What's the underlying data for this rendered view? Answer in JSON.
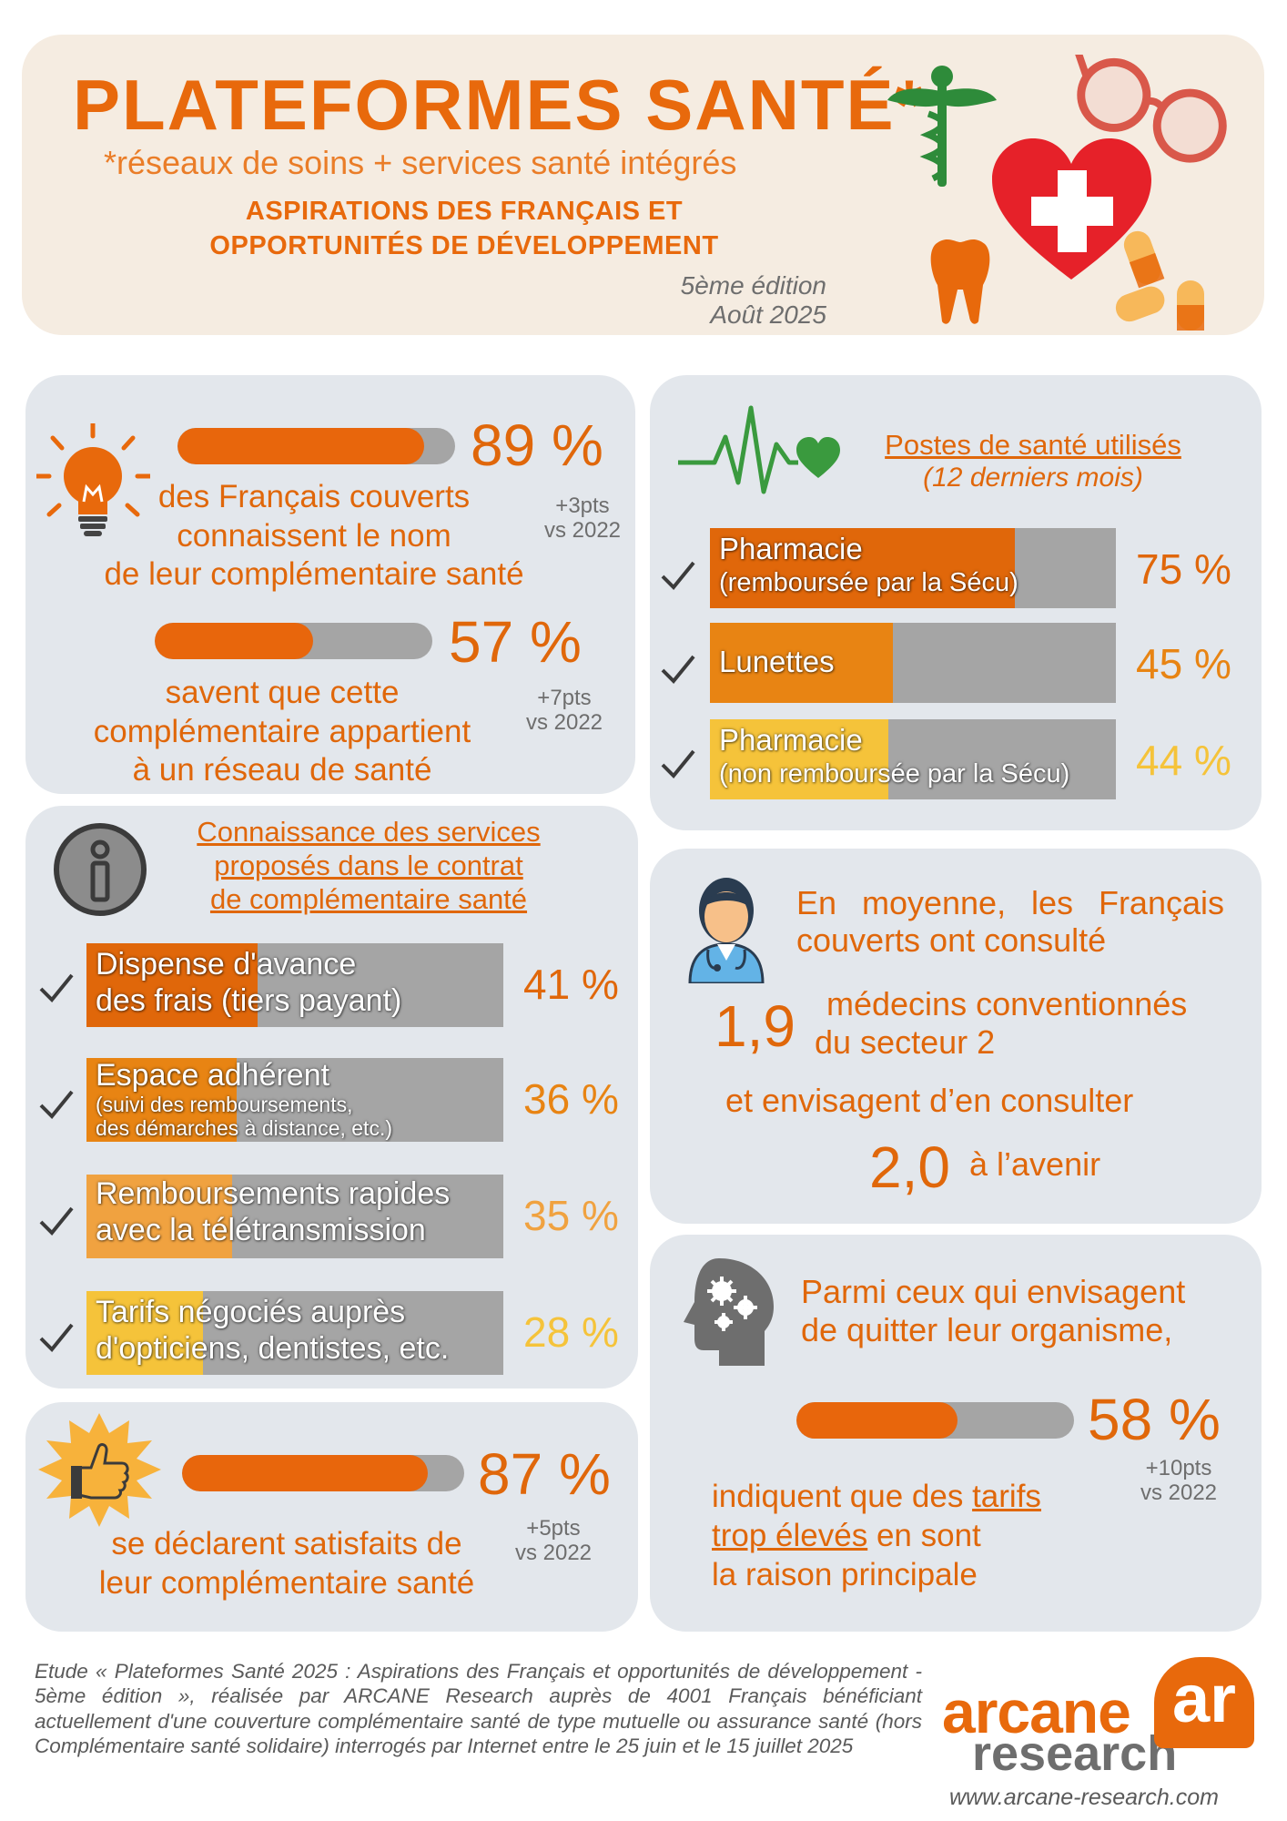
{
  "header": {
    "title": "PLATEFORMES SANTÉ*",
    "subtitle": "*réseaux de soins + services santé intégrés",
    "line1": "ASPIRATIONS DES FRANÇAIS ET",
    "line2": "OPPORTUNITÉS DE DÉVELOPPEMENT",
    "edition": "5ème édition",
    "date": "Août 2025"
  },
  "awareness": {
    "stat1": {
      "pct": "89 %",
      "value": 0.89,
      "delta1": "+3pts",
      "delta2": "vs 2022",
      "lines": [
        "des Français couverts",
        "connaissent le nom",
        "de leur complémentaire santé"
      ]
    },
    "stat2": {
      "pct": "57 %",
      "value": 0.57,
      "delta1": "+7pts",
      "delta2": "vs 2022",
      "lines": [
        "savent que cette",
        "complémentaire appartient",
        "à un réseau de santé"
      ]
    }
  },
  "services": {
    "title_lines": [
      "Connaissance des services",
      "proposés dans le contrat",
      "de complémentaire santé"
    ],
    "items": [
      {
        "line1": "Dispense d'avance",
        "line2": "des frais (tiers payant)",
        "pct": "41 %",
        "value": 0.41,
        "color": "#e0670a"
      },
      {
        "line1": "Espace adhérent",
        "line2a": "(suivi des remboursements,",
        "line2b": "des démarches à distance, etc.)",
        "pct": "36 %",
        "value": 0.36,
        "color": "#e88413"
      },
      {
        "line1": "Remboursements rapides",
        "line2": "avec la télétransmission",
        "pct": "35 %",
        "value": 0.35,
        "color": "#f0a240"
      },
      {
        "line1": "Tarifs négociés auprès",
        "line2": "d'opticiens, dentistes, etc.",
        "pct": "28 %",
        "value": 0.28,
        "color": "#f5c33a"
      }
    ]
  },
  "satisfaction": {
    "pct": "87 %",
    "value": 0.87,
    "delta1": "+5pts",
    "delta2": "vs 2022",
    "lines": [
      "se déclarent satisfaits de",
      "leur complémentaire santé"
    ]
  },
  "postes": {
    "title": "Postes de santé utilisés",
    "subtitle": "(12 derniers mois)",
    "items": [
      {
        "line1": "Pharmacie",
        "line2": "(remboursée par la Sécu)",
        "pct": "75 %",
        "value": 0.75,
        "color": "#e0670a"
      },
      {
        "line1": "Lunettes",
        "pct": "45 %",
        "value": 0.45,
        "color": "#e88413"
      },
      {
        "line1": "Pharmacie",
        "line2": "(non remboursée par la Sécu)",
        "pct": "44 %",
        "value": 0.44,
        "color": "#f5c33a"
      }
    ]
  },
  "consultation": {
    "intro1": "En moyenne, les Français",
    "intro2": "couverts ont consulté",
    "value1": "1,9",
    "desc1a": "médecins conventionnés",
    "desc1b": "du secteur 2",
    "middle": "et envisagent d’en consulter",
    "value2": "2,0",
    "desc2": "à l’avenir"
  },
  "leaving": {
    "intro1": "Parmi ceux qui envisagent",
    "intro2": "de quitter leur organisme,",
    "pct": "58 %",
    "value": 0.58,
    "delta1": "+10pts",
    "delta2": "vs 2022",
    "line1a": "indiquent que des ",
    "line1b": "tarifs",
    "line2a": "trop élevés",
    "line2b": " en sont",
    "line3": "la raison principale"
  },
  "footer": {
    "text": "Etude « Plateformes Santé 2025 : Aspirations des Français et opportunités de développement - 5ème édition », réalisée par ARCANE Research auprès de 4001 Français bénéficiant actuellement d'une couverture complémentaire santé de type mutuelle ou assurance santé (hors Complémentaire santé solidaire) interrogés par Internet entre le 25 juin et le 15 juillet 2025",
    "logo_line1": "arcane",
    "logo_line2": "research",
    "logo_mark": "ar",
    "website": "www.arcane-research.com"
  }
}
